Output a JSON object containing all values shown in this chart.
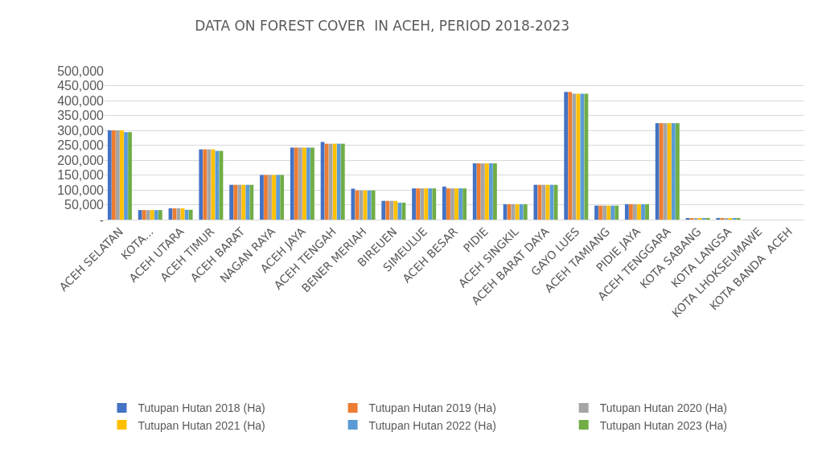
{
  "chart_data": {
    "type": "bar",
    "title": "DATA ON FOREST COVER  IN ACEH, PERIOD 2018-2023",
    "categories": [
      "ACEH SELATAN",
      "KOTA...",
      "ACEH UTARA",
      "ACEH TIMUR",
      "ACEH BARAT",
      "NAGAN RAYA",
      "ACEH JAYA",
      "ACEH TENGAH",
      "BENER MERIAH",
      "BIREUEN",
      "SIMEULUE",
      "ACEH BESAR",
      "PIDIE",
      "ACEH SINGKIL",
      "ACEH BARAT DAYA",
      "GAYO LUES",
      "ACEH TAMIANG",
      "PIDIE JAYA",
      "ACEH TENGGARA",
      "KOTA SABANG",
      "KOTA LANGSA",
      "KOTA LHOKSEUMAWE",
      "KOTA BANDA  ACEH"
    ],
    "series": [
      {
        "name": "Tutupan Hutan 2018 (Ha)",
        "color": "#4472c4",
        "values": [
          300000,
          32000,
          38000,
          236000,
          117000,
          150000,
          242000,
          261000,
          104000,
          63000,
          105000,
          111000,
          189000,
          52000,
          117000,
          429000,
          47000,
          52000,
          324000,
          4000,
          4000,
          0,
          0
        ]
      },
      {
        "name": "Tutupan Hutan 2019 (Ha)",
        "color": "#ed7d31",
        "values": [
          300000,
          32000,
          38000,
          236000,
          117000,
          150000,
          242000,
          255000,
          98000,
          63000,
          105000,
          105000,
          189000,
          52000,
          117000,
          429000,
          47000,
          52000,
          324000,
          4000,
          4000,
          0,
          0
        ]
      },
      {
        "name": "Tutupan Hutan 2020 (Ha)",
        "color": "#a5a5a5",
        "values": [
          300000,
          32000,
          38000,
          236000,
          117000,
          150000,
          242000,
          255000,
          98000,
          63000,
          105000,
          105000,
          189000,
          52000,
          117000,
          423000,
          47000,
          52000,
          324000,
          4000,
          4000,
          0,
          0
        ]
      },
      {
        "name": "Tutupan Hutan 2021 (Ha)",
        "color": "#ffc000",
        "values": [
          300000,
          32000,
          38000,
          236000,
          117000,
          150000,
          242000,
          255000,
          98000,
          63000,
          105000,
          105000,
          189000,
          52000,
          117000,
          423000,
          47000,
          52000,
          324000,
          4000,
          4000,
          0,
          0
        ]
      },
      {
        "name": "Tutupan Hutan 2022 (Ha)",
        "color": "#5b9bd5",
        "values": [
          294000,
          32000,
          33000,
          231000,
          117000,
          150000,
          242000,
          255000,
          98000,
          57000,
          105000,
          105000,
          189000,
          52000,
          117000,
          423000,
          47000,
          52000,
          324000,
          4000,
          4000,
          0,
          0
        ]
      },
      {
        "name": "Tutupan Hutan 2023 (Ha)",
        "color": "#70ad47",
        "values": [
          294000,
          32000,
          33000,
          231000,
          117000,
          150000,
          242000,
          255000,
          98000,
          57000,
          105000,
          105000,
          189000,
          52000,
          117000,
          423000,
          47000,
          52000,
          324000,
          4000,
          4000,
          0,
          0
        ]
      }
    ],
    "ylim": [
      0,
      500000
    ],
    "yticks": [
      {
        "value": 0,
        "label": "-"
      },
      {
        "value": 50000,
        "label": "50,000"
      },
      {
        "value": 100000,
        "label": "100,000"
      },
      {
        "value": 150000,
        "label": "150,000"
      },
      {
        "value": 200000,
        "label": "200,000"
      },
      {
        "value": 250000,
        "label": "250,000"
      },
      {
        "value": 300000,
        "label": "300,000"
      },
      {
        "value": 350000,
        "label": "350,000"
      },
      {
        "value": 400000,
        "label": "400,000"
      },
      {
        "value": 450000,
        "label": "450,000"
      },
      {
        "value": 500000,
        "label": "500,000"
      }
    ],
    "grid": "y",
    "legend": "bottom"
  }
}
